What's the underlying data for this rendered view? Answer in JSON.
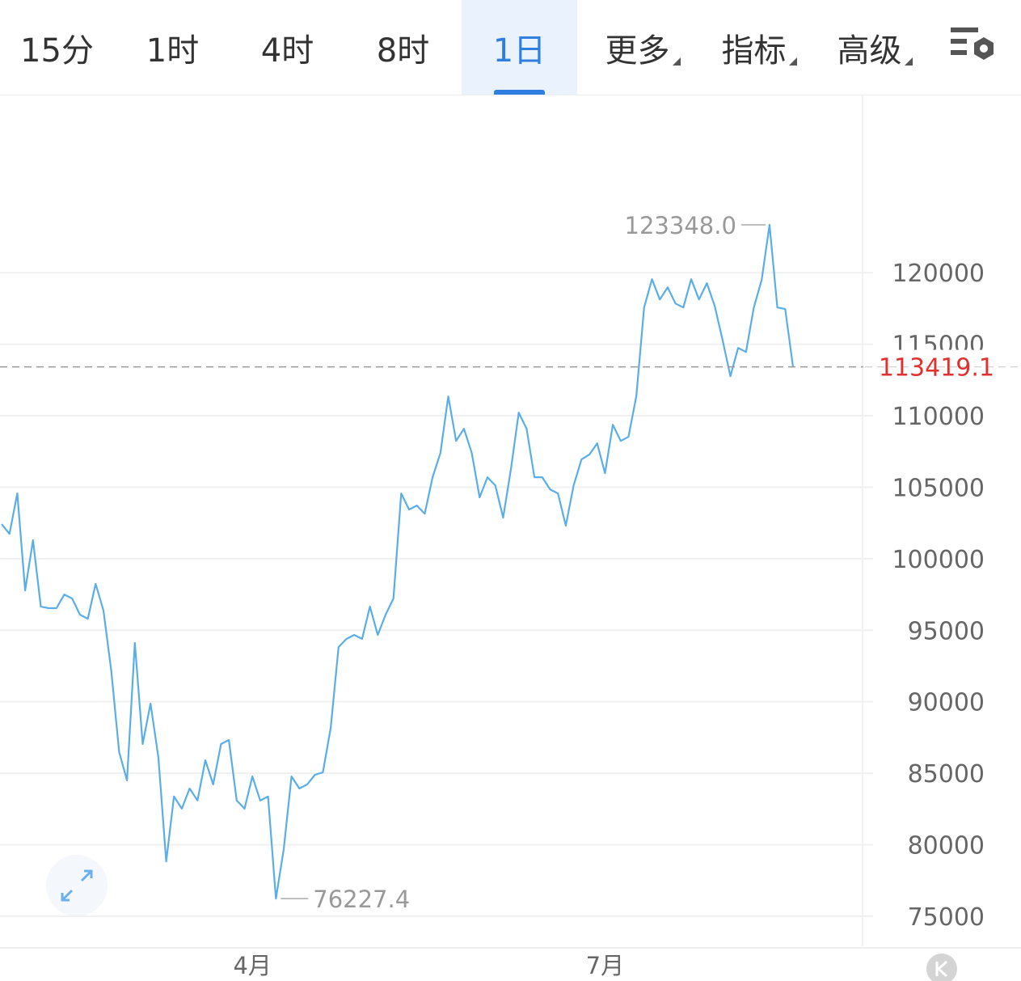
{
  "tabs": [
    "15分",
    "1时",
    "4时",
    "8时",
    "1日",
    "更多",
    "指标",
    "高级"
  ],
  "selected_tab": 4,
  "chart_data": {
    "type": "line",
    "color": "#5aaee8",
    "categories": [
      null,
      null,
      null,
      null,
      null,
      null,
      null,
      null,
      null,
      null,
      null,
      null,
      null,
      null,
      null,
      null,
      null,
      null,
      null,
      null,
      null,
      null,
      null,
      null,
      null,
      null,
      null,
      null,
      null,
      null,
      null,
      null,
      "4月",
      null,
      null,
      null,
      null,
      null,
      null,
      null,
      null,
      null,
      null,
      null,
      null,
      null,
      null,
      null,
      null,
      null,
      null,
      null,
      null,
      null,
      null,
      null,
      null,
      null,
      null,
      null,
      null,
      null,
      null,
      null,
      null,
      null,
      null,
      null,
      null,
      null,
      null,
      null,
      null,
      null,
      null,
      null,
      null,
      "7月",
      null,
      null,
      null,
      null,
      null,
      null,
      null,
      null,
      null,
      null,
      null,
      null,
      null,
      null,
      null,
      null,
      null,
      null,
      null,
      null,
      null,
      null,
      null,
      null
    ],
    "values": [
      102420,
      101740,
      104570,
      97780,
      101290,
      96650,
      96540,
      96540,
      97500,
      97220,
      96090,
      95800,
      98240,
      96370,
      92130,
      86480,
      84500,
      94110,
      87040,
      89870,
      86130,
      78830,
      83370,
      82520,
      83930,
      83090,
      85910,
      84220,
      87040,
      87320,
      83090,
      82520,
      84780,
      83090,
      83370,
      76227.4,
      79690,
      84780,
      83930,
      84220,
      84890,
      85060,
      88170,
      93820,
      94390,
      94670,
      94390,
      96650,
      94670,
      96090,
      97220,
      104570,
      103440,
      103720,
      103150,
      105700,
      107390,
      111350,
      108240,
      109090,
      107390,
      104290,
      105700,
      105130,
      102870,
      106260,
      110220,
      109090,
      105700,
      105700,
      104850,
      104570,
      102310,
      105130,
      106940,
      107280,
      108070,
      105980,
      109370,
      108240,
      108520,
      111350,
      117570,
      119550,
      118130,
      118980,
      117850,
      117570,
      119550,
      118130,
      119270,
      117680,
      115310,
      112760,
      114740,
      114460,
      117570,
      119500,
      123348.0,
      117570,
      117460,
      113419.1
    ],
    "ylim": [
      72900,
      132400
    ],
    "yticks": [
      75000,
      80000,
      85000,
      90000,
      95000,
      100000,
      105000,
      110000,
      115000,
      120000
    ],
    "grid": true,
    "annotations": [
      {
        "value": 123348.0,
        "label": "123348.0"
      },
      {
        "value": 76227.4,
        "label": "76227.4"
      }
    ],
    "current_price": 113419.1
  }
}
